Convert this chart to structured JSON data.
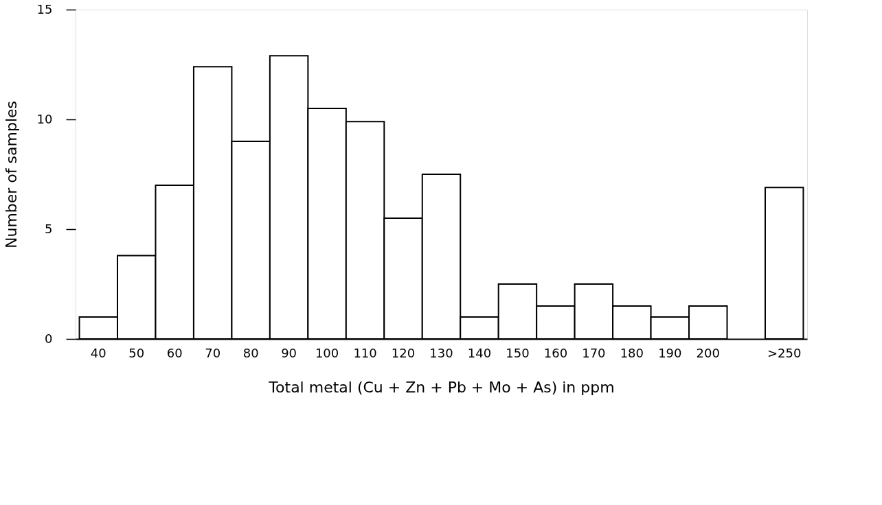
{
  "chart_data": {
    "type": "bar",
    "xlabel": "Total metal (Cu + Zn + Pb + Mo + As) in ppm",
    "ylabel": "Number of samples",
    "categories": [
      "40",
      "50",
      "60",
      "70",
      "80",
      "90",
      "100",
      "110",
      "120",
      "130",
      "140",
      "150",
      "160",
      "170",
      "180",
      "190",
      "200",
      null,
      ">250"
    ],
    "values": [
      1.0,
      3.8,
      7.0,
      12.4,
      9.0,
      12.9,
      10.5,
      9.9,
      5.5,
      7.5,
      1.0,
      2.5,
      1.5,
      2.5,
      1.5,
      1.0,
      1.5,
      null,
      6.9
    ],
    "color": "#ffffff",
    "ylim": [
      0,
      15
    ],
    "yticks": [
      0,
      5,
      10,
      15
    ],
    "grid": false
  }
}
